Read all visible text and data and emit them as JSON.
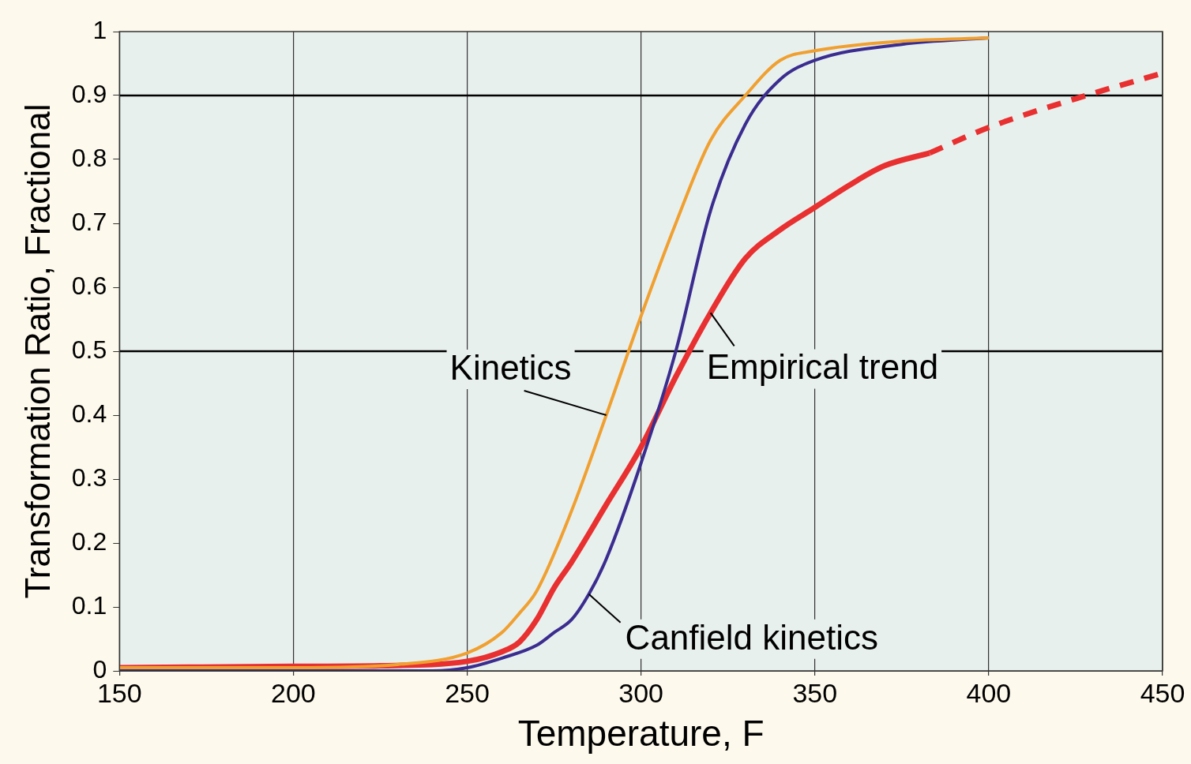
{
  "chart_data": {
    "type": "line",
    "xlabel": "Temperature, F",
    "ylabel": "Transformation Ratio, Fractional",
    "xlim": [
      150,
      450
    ],
    "ylim": [
      0,
      1
    ],
    "xticks": [
      150,
      200,
      250,
      300,
      350,
      400,
      450
    ],
    "yticks": [
      0,
      0.1,
      0.2,
      0.3,
      0.4,
      0.5,
      0.6,
      0.7,
      0.8,
      0.9,
      1
    ],
    "grid": "x",
    "legend": false,
    "marker": "none",
    "ref_lines": [
      {
        "axis": "y",
        "value": 0.9,
        "color": "#000000"
      },
      {
        "axis": "y",
        "value": 0.5,
        "color": "#000000"
      }
    ],
    "series": [
      {
        "name": "Kinetics",
        "color": "#f0a030",
        "x": [
          150,
          200,
          230,
          250,
          260,
          265,
          270,
          280,
          290,
          300,
          310,
          320,
          330,
          340,
          350,
          375,
          400
        ],
        "values": [
          0.005,
          0.005,
          0.01,
          0.028,
          0.06,
          0.09,
          0.125,
          0.25,
          0.4,
          0.555,
          0.7,
          0.83,
          0.9,
          0.955,
          0.97,
          0.985,
          0.99
        ]
      },
      {
        "name": "Canfield kinetics",
        "color": "#3a2d8f",
        "x": [
          150,
          200,
          240,
          250,
          260,
          270,
          275,
          280,
          285,
          290,
          300,
          310,
          320,
          330,
          340,
          350,
          375,
          400
        ],
        "values": [
          0,
          0,
          0,
          0.005,
          0.02,
          0.04,
          0.06,
          0.08,
          0.12,
          0.175,
          0.325,
          0.5,
          0.72,
          0.855,
          0.925,
          0.955,
          0.98,
          0.99
        ]
      },
      {
        "name": "Empirical trend",
        "color": "#e83030",
        "x": [
          150,
          200,
          225,
          250,
          260,
          265,
          270,
          275,
          280,
          290,
          300,
          310,
          320,
          330,
          340,
          350,
          360,
          370,
          383
        ],
        "values": [
          0.005,
          0.007,
          0.008,
          0.015,
          0.03,
          0.045,
          0.08,
          0.13,
          0.17,
          0.26,
          0.35,
          0.46,
          0.56,
          0.645,
          0.69,
          0.725,
          0.76,
          0.79,
          0.81
        ]
      },
      {
        "color": "#e83030",
        "line_style": "dashed",
        "x": [
          383,
          400,
          425,
          450
        ],
        "values": [
          0.81,
          0.85,
          0.895,
          0.935
        ]
      }
    ]
  }
}
